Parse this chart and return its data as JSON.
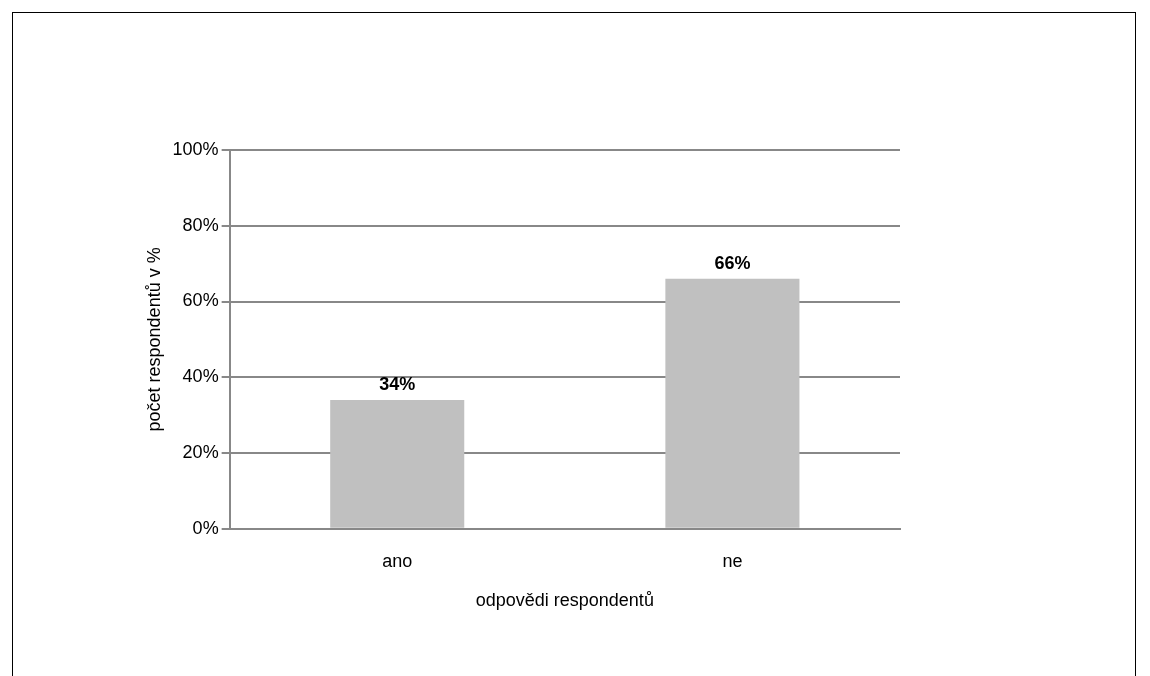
{
  "chart_data": {
    "type": "bar",
    "xlabel": "odpovědi respondentů",
    "ylabel": "počet respondentů v %",
    "categories": [
      "ano",
      "ne"
    ],
    "values": [
      34,
      66
    ],
    "color": "#c0c0c0",
    "value_labels": [
      "34%",
      "66%"
    ],
    "ylim": [
      0,
      100
    ],
    "yticks": [
      {
        "value": 0,
        "label": "0%"
      },
      {
        "value": 20,
        "label": "20%"
      },
      {
        "value": 40,
        "label": "40%"
      },
      {
        "value": 60,
        "label": "60%"
      },
      {
        "value": 80,
        "label": "80%"
      },
      {
        "value": 100,
        "label": "100%"
      }
    ],
    "grid": "y"
  }
}
